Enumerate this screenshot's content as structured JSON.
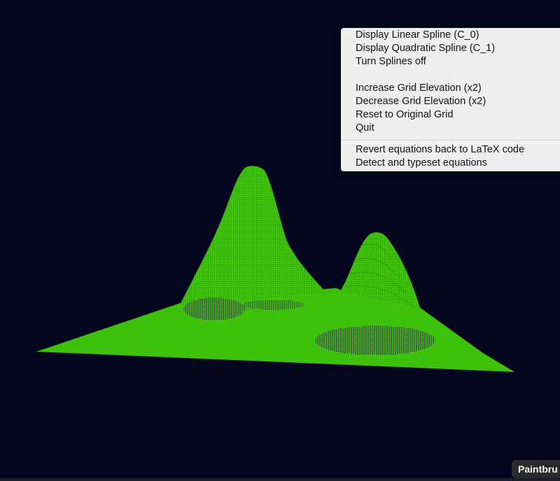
{
  "scene": {
    "background": "#03061c",
    "mesh_color": "#3ec10a",
    "mesh_shadow": "#1f6a05"
  },
  "context_menu": {
    "group1": [
      "Display Linear Spline (C_0)",
      "Display Quadratic Spline (C_1)",
      "Turn Splines off"
    ],
    "group2": [
      "Increase Grid Elevation (x2)",
      "Decrease Grid Elevation (x2)",
      "Reset to Original Grid",
      "Quit"
    ],
    "group3": [
      "Revert equations back to LaTeX code",
      "Detect and typeset equations"
    ]
  },
  "dock": {
    "app_label": "Paintbru"
  }
}
